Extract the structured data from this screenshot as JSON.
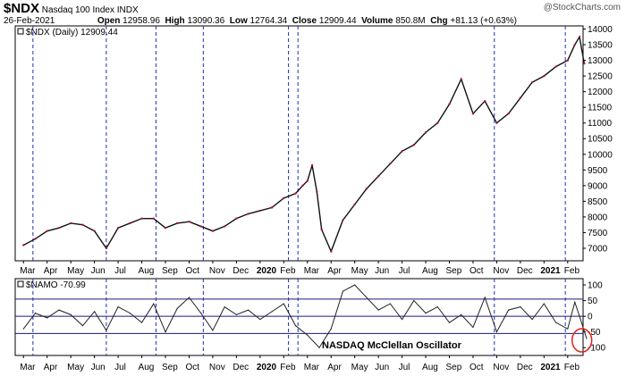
{
  "header": {
    "symbol": "$NDX",
    "name": "Nasdaq 100 Index",
    "exchange": "INDX",
    "date": "26-Feb-2021",
    "open_label": "Open",
    "open": "12958.96",
    "high_label": "High",
    "high": "13090.36",
    "low_label": "Low",
    "low": "12764.34",
    "close_label": "Close",
    "close": "12909.44",
    "volume_label": "Volume",
    "volume": "850.8M",
    "chg_label": "Chg",
    "chg": "+81.13 (+0.63%)",
    "watermark": "@StockCharts.com"
  },
  "chart_data": [
    {
      "type": "line",
      "legend": "$NDX (Daily) 12909.44",
      "ylim": [
        6600,
        14100
      ],
      "yticks": [
        7000,
        7500,
        8000,
        8500,
        9000,
        9500,
        10000,
        10500,
        11000,
        11500,
        12000,
        12500,
        13000,
        13500,
        14000
      ],
      "x_labels": [
        "Mar",
        "Apr",
        "May",
        "Jun",
        "Jul",
        "Aug",
        "Sep",
        "Oct",
        "Nov",
        "Dec",
        "2020",
        "Feb",
        "Mar",
        "Apr",
        "May",
        "Jun",
        "Jul",
        "Aug",
        "Sep",
        "Oct",
        "Nov",
        "Dec",
        "2021",
        "Feb"
      ],
      "x_bold": [
        "2020",
        "2021"
      ],
      "x": [
        0,
        0.5,
        1,
        1.5,
        2,
        2.5,
        3,
        3.5,
        4,
        4.5,
        5,
        5.5,
        6,
        6.5,
        7,
        7.5,
        8,
        8.5,
        9,
        9.5,
        10,
        10.5,
        11,
        11.5,
        11.8,
        12,
        12.2,
        12.4,
        12.6,
        13,
        13.5,
        14,
        14.5,
        15,
        15.5,
        16,
        16.5,
        17,
        17.5,
        18,
        18.5,
        19,
        19.5,
        20,
        20.5,
        21,
        21.5,
        22,
        22.5,
        23,
        23.3,
        23.5,
        23.7
      ],
      "values": [
        7100,
        7300,
        7550,
        7650,
        7800,
        7750,
        7550,
        7000,
        7650,
        7800,
        7950,
        7950,
        7650,
        7800,
        7850,
        7700,
        7550,
        7700,
        7950,
        8100,
        8200,
        8300,
        8600,
        8750,
        9000,
        9150,
        9650,
        8800,
        7600,
        6900,
        7900,
        8400,
        8900,
        9300,
        9700,
        10100,
        10300,
        10700,
        11000,
        11600,
        12400,
        11300,
        11700,
        11000,
        11300,
        11800,
        12300,
        12500,
        12800,
        13000,
        13500,
        13750,
        12900
      ]
    },
    {
      "type": "line",
      "legend": "$NAMO -70.99",
      "annotation": "NASDAQ McClellan Oscillator",
      "ylim": [
        -125,
        120
      ],
      "yticks": [
        100,
        50,
        0,
        -50,
        -100
      ],
      "reference_lines": [
        55,
        0,
        -55
      ],
      "x_labels": [
        "Mar",
        "Apr",
        "May",
        "Jun",
        "Jul",
        "Aug",
        "Sep",
        "Oct",
        "Nov",
        "Dec",
        "2020",
        "Feb",
        "Mar",
        "Apr",
        "May",
        "Jun",
        "Jul",
        "Aug",
        "Sep",
        "Oct",
        "Nov",
        "Dec",
        "2021",
        "Feb"
      ],
      "x_bold": [
        "2020",
        "2021"
      ],
      "x": [
        0,
        0.5,
        1,
        1.5,
        2,
        2.5,
        3,
        3.5,
        4,
        4.5,
        5,
        5.5,
        6,
        6.5,
        7,
        7.5,
        8,
        8.5,
        9,
        9.5,
        10,
        10.5,
        11,
        11.5,
        12,
        12.5,
        13,
        13.5,
        14,
        14.5,
        15,
        15.5,
        16,
        16.5,
        17,
        17.5,
        18,
        18.5,
        19,
        19.5,
        20,
        20.5,
        21,
        21.5,
        22,
        22.5,
        23,
        23.3,
        23.5,
        23.8
      ],
      "values": [
        -40,
        10,
        -5,
        20,
        5,
        -30,
        15,
        -45,
        30,
        10,
        -20,
        40,
        -50,
        25,
        60,
        10,
        -45,
        30,
        5,
        20,
        -10,
        15,
        40,
        -30,
        -60,
        -100,
        -40,
        80,
        100,
        60,
        20,
        40,
        -10,
        50,
        10,
        30,
        -20,
        5,
        -35,
        60,
        -50,
        20,
        30,
        -10,
        40,
        -20,
        -40,
        45,
        0,
        -71
      ],
      "highlight_circle_x": 23.6
    }
  ],
  "vlines_x": [
    0.4,
    3.5,
    5.6,
    7.6,
    11.2,
    11.6,
    19.9,
    22.9
  ]
}
